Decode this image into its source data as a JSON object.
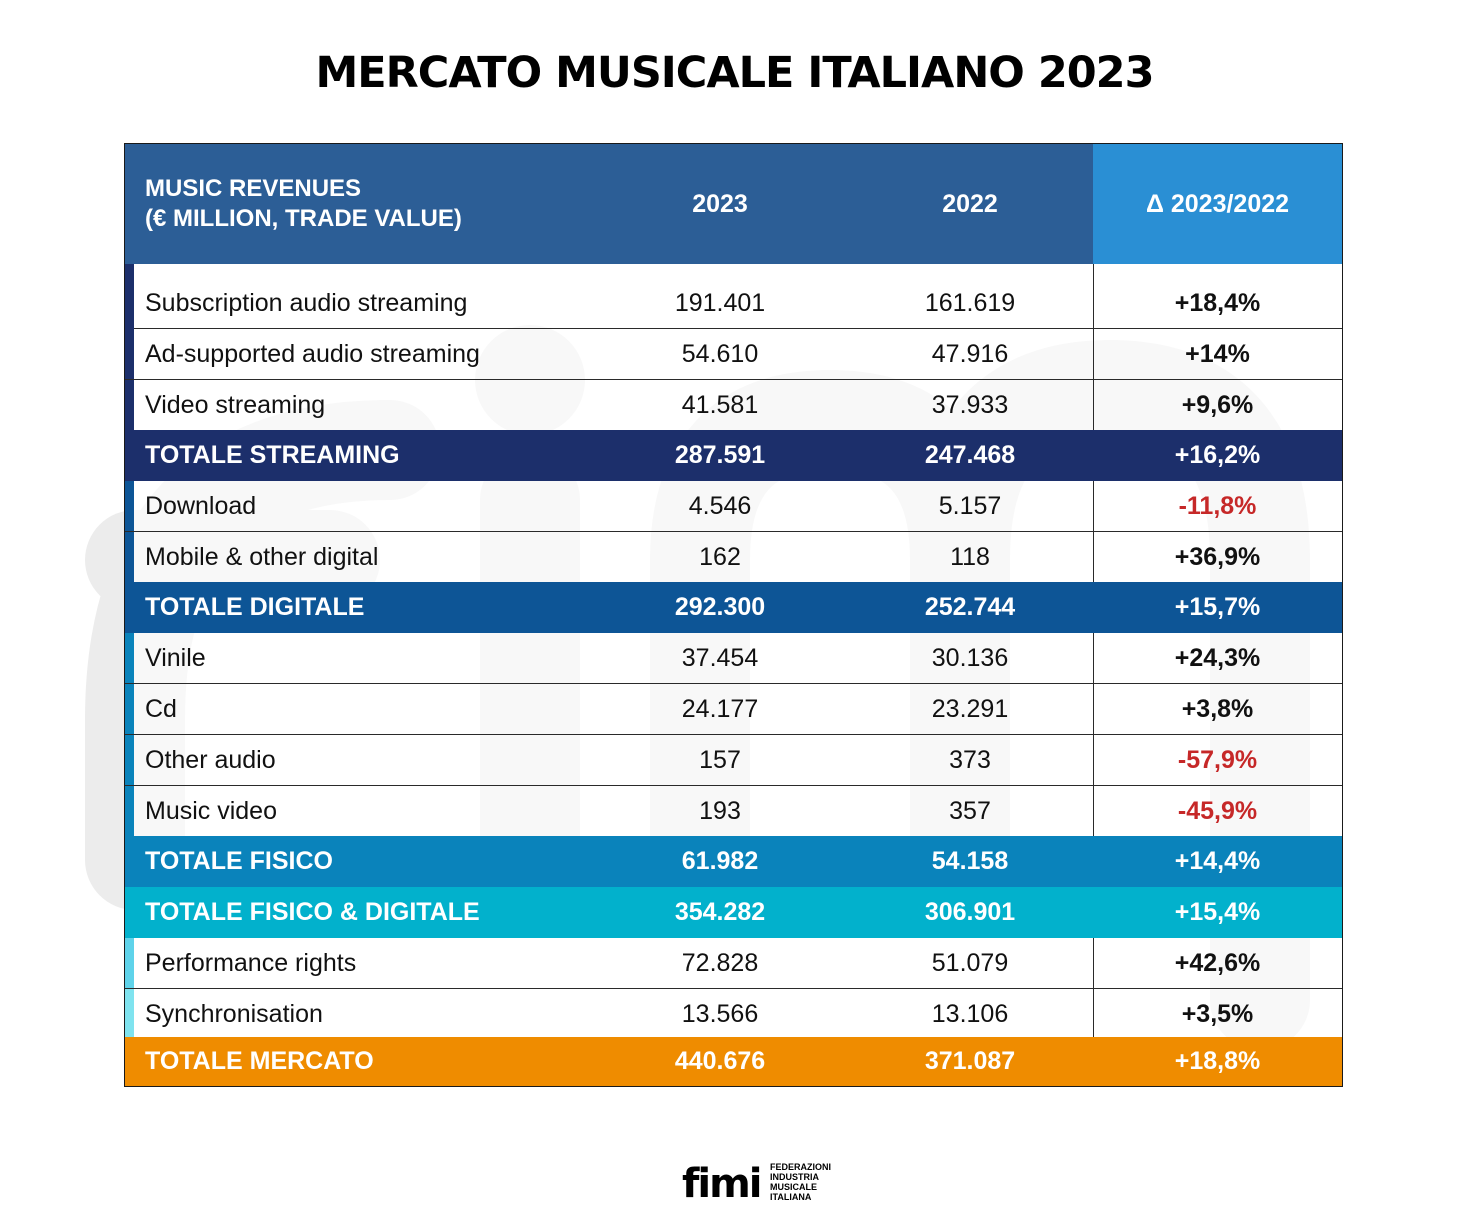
{
  "title": "MERCATO MUSICALE ITALIANO 2023",
  "header": {
    "label_line1": "MUSIC REVENUES",
    "label_line2": "(€ MILLION, TRADE VALUE)",
    "col_2023": "2023",
    "col_2022": "2022",
    "col_delta": "Δ 2023/2022"
  },
  "rows": [
    {
      "label": "Subscription audio streaming",
      "v2023": "191.401",
      "v2022": "161.619",
      "delta": "+18,4%"
    },
    {
      "label": "Ad-supported audio streaming",
      "v2023": "54.610",
      "v2022": "47.916",
      "delta": "+14%"
    },
    {
      "label": "Video streaming",
      "v2023": "41.581",
      "v2022": "37.933",
      "delta": "+9,6%"
    },
    {
      "label": "TOTALE STREAMING",
      "v2023": "287.591",
      "v2022": "247.468",
      "delta": "+16,2%"
    },
    {
      "label": "Download",
      "v2023": "4.546",
      "v2022": "5.157",
      "delta": "-11,8%"
    },
    {
      "label": "Mobile & other digital",
      "v2023": "162",
      "v2022": "118",
      "delta": "+36,9%"
    },
    {
      "label": "TOTALE DIGITALE",
      "v2023": "292.300",
      "v2022": "252.744",
      "delta": "+15,7%"
    },
    {
      "label": "Vinile",
      "v2023": "37.454",
      "v2022": "30.136",
      "delta": "+24,3%"
    },
    {
      "label": "Cd",
      "v2023": "24.177",
      "v2022": "23.291",
      "delta": "+3,8%"
    },
    {
      "label": "Other audio",
      "v2023": "157",
      "v2022": "373",
      "delta": "-57,9%"
    },
    {
      "label": "Music video",
      "v2023": "193",
      "v2022": "357",
      "delta": "-45,9%"
    },
    {
      "label": "TOTALE FISICO",
      "v2023": "61.982",
      "v2022": "54.158",
      "delta": "+14,4%"
    },
    {
      "label": "TOTALE FISICO & DIGITALE",
      "v2023": "354.282",
      "v2022": "306.901",
      "delta": "+15,4%"
    },
    {
      "label": "Performance rights",
      "v2023": "72.828",
      "v2022": "51.079",
      "delta": "+42,6%"
    },
    {
      "label": "Synchronisation",
      "v2023": "13.566",
      "v2022": "13.106",
      "delta": "+3,5%"
    },
    {
      "label": "TOTALE MERCATO",
      "v2023": "440.676",
      "v2022": "371.087",
      "delta": "+18,8%"
    }
  ],
  "colors": {
    "header_bg": "#2c5e96",
    "header_delta_bg": "#2a8fd4",
    "totale_streaming": "#1c2f6b",
    "totale_digitale": "#0d5596",
    "totale_fisico": "#0a83bb",
    "totale_fisico_digitale": "#02b1cc",
    "totale_mercato": "#ef8c00",
    "negative": "#c62828"
  },
  "logo": {
    "mark": "fimi",
    "lines": [
      "FEDERAZIONI",
      "INDUSTRIA",
      "MUSICALE",
      "ITALIANA"
    ]
  }
}
